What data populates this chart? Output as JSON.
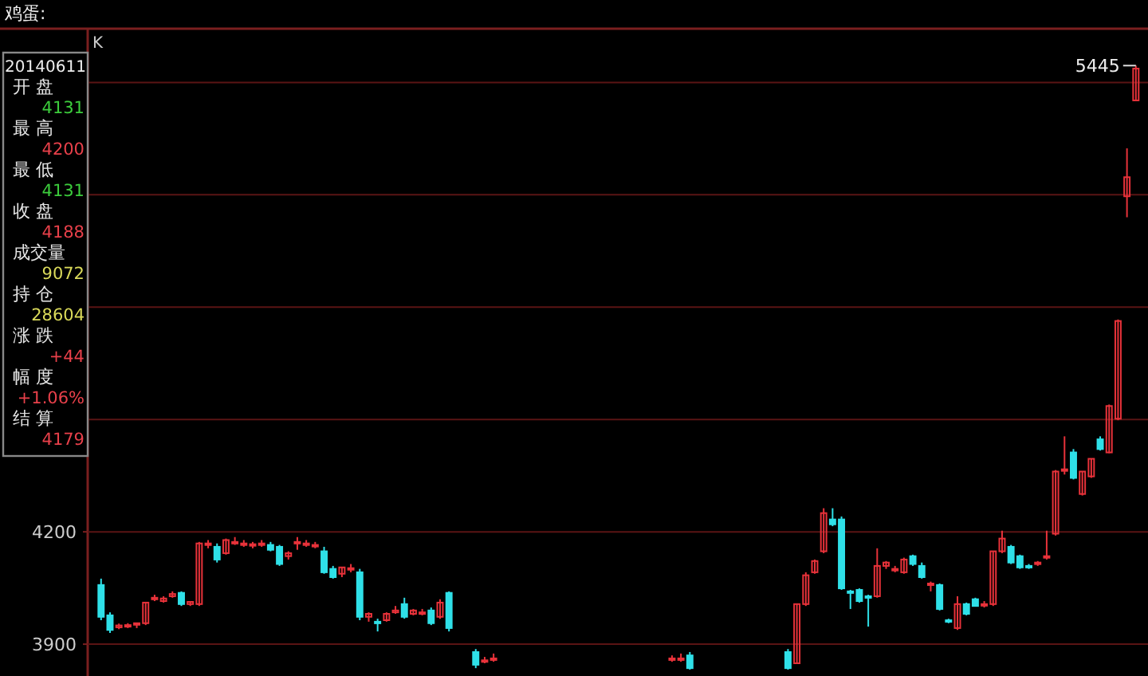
{
  "chart_data": {
    "type": "candlestick",
    "title": "鸡蛋:",
    "subtitle": "K",
    "categories": [
      null,
      null,
      null,
      null,
      null,
      null,
      null,
      null,
      null,
      null,
      null,
      null,
      null,
      null,
      null,
      null,
      null,
      null,
      null,
      null,
      null,
      null,
      null,
      null,
      null,
      null,
      null,
      null,
      null,
      null,
      null,
      null,
      null,
      null,
      null,
      null,
      null,
      null,
      null,
      null,
      null,
      null,
      null,
      null,
      null,
      null,
      null,
      null,
      null,
      null,
      null,
      null,
      null,
      null,
      null,
      null,
      null,
      null,
      null,
      null,
      null,
      null,
      null,
      null,
      null,
      null,
      null,
      null,
      null,
      null,
      null,
      null,
      null,
      null,
      null,
      null,
      null,
      null,
      null,
      null,
      null,
      null,
      null,
      null,
      null,
      null,
      null,
      null,
      null,
      null,
      null,
      null,
      null,
      null,
      null,
      null,
      null,
      null,
      null,
      null,
      null,
      null,
      null,
      null,
      null,
      null,
      null,
      null,
      null,
      null,
      null,
      null,
      null,
      null,
      null,
      null,
      null
    ],
    "ohlc": [
      [
        4058,
        4075,
        3964,
        3973
      ],
      [
        3977,
        3985,
        3930,
        3938
      ],
      [
        3945,
        3955,
        3940,
        3950
      ],
      [
        3947,
        3956,
        3943,
        3951
      ],
      [
        3956,
        3956,
        3943,
        3956
      ],
      [
        3956,
        4011,
        3951,
        4011
      ],
      [
        4024,
        4032,
        4015,
        4024
      ],
      [
        4015,
        4028,
        4011,
        4022
      ],
      [
        4028,
        4041,
        4024,
        4034
      ],
      [
        4037,
        4041,
        4002,
        4007
      ],
      [
        4007,
        4015,
        4002,
        4013
      ],
      [
        4007,
        4173,
        4002,
        4169
      ],
      [
        4169,
        4178,
        4156,
        4169
      ],
      [
        4160,
        4169,
        4118,
        4126
      ],
      [
        4143,
        4182,
        4139,
        4178
      ],
      [
        4173,
        4186,
        4165,
        4173
      ],
      [
        4169,
        4178,
        4160,
        4169
      ],
      [
        4163,
        4173,
        4156,
        4167
      ],
      [
        4169,
        4178,
        4160,
        4169
      ],
      [
        4165,
        4173,
        4148,
        4152
      ],
      [
        4160,
        4165,
        4109,
        4114
      ],
      [
        4135,
        4148,
        4126,
        4143
      ],
      [
        4173,
        4186,
        4152,
        4173
      ],
      [
        4169,
        4178,
        4160,
        4169
      ],
      [
        4165,
        4173,
        4156,
        4165
      ],
      [
        4148,
        4160,
        4088,
        4092
      ],
      [
        4101,
        4109,
        4075,
        4079
      ],
      [
        4088,
        4105,
        4079,
        4105
      ],
      [
        4101,
        4114,
        4092,
        4103
      ],
      [
        4092,
        4101,
        3964,
        3973
      ],
      [
        3973,
        3985,
        3960,
        3981
      ],
      [
        3960,
        3968,
        3934,
        3958
      ],
      [
        3964,
        3985,
        3960,
        3981
      ],
      [
        3985,
        4002,
        3981,
        3990
      ],
      [
        4007,
        4024,
        3968,
        3973
      ],
      [
        3981,
        3994,
        3977,
        3990
      ],
      [
        3985,
        3994,
        3977,
        3985
      ],
      [
        3990,
        3998,
        3951,
        3956
      ],
      [
        3973,
        4020,
        3968,
        4011
      ],
      [
        4037,
        4041,
        3934,
        3943
      ],
      null,
      null,
      [
        3879,
        3887,
        3836,
        3845
      ],
      [
        3857,
        3866,
        3849,
        3857
      ],
      [
        3862,
        3875,
        3853,
        3862
      ],
      null,
      null,
      null,
      null,
      null,
      null,
      null,
      null,
      null,
      null,
      null,
      null,
      null,
      null,
      null,
      null,
      null,
      null,
      null,
      [
        3862,
        3870,
        3853,
        3862
      ],
      [
        3862,
        3875,
        3853,
        3862
      ],
      [
        3870,
        3879,
        3832,
        3836
      ],
      null,
      null,
      null,
      null,
      null,
      null,
      null,
      null,
      null,
      null,
      [
        3879,
        3887,
        3832,
        3836
      ],
      [
        3849,
        4007,
        3849,
        4007
      ],
      [
        4007,
        4092,
        4002,
        4084
      ],
      [
        4092,
        4126,
        4088,
        4122
      ],
      [
        4148,
        4263,
        4143,
        4250
      ],
      [
        4233,
        4263,
        4215,
        4220
      ],
      [
        4233,
        4241,
        4045,
        4049
      ],
      [
        4041,
        4045,
        3994,
        4037
      ],
      [
        4045,
        4049,
        4011,
        4015
      ],
      [
        4028,
        4032,
        3947,
        4026
      ],
      [
        4028,
        4156,
        4024,
        4109
      ],
      [
        4109,
        4122,
        4101,
        4118
      ],
      [
        4101,
        4109,
        4092,
        4101
      ],
      [
        4092,
        4131,
        4088,
        4126
      ],
      [
        4135,
        4139,
        4109,
        4114
      ],
      [
        4109,
        4118,
        4075,
        4079
      ],
      [
        4058,
        4067,
        4041,
        4062
      ],
      [
        4058,
        4062,
        3990,
        3994
      ],
      [
        3964,
        3968,
        3956,
        3962
      ],
      [
        3943,
        4028,
        3938,
        4007
      ],
      [
        4007,
        4011,
        3977,
        3981
      ],
      [
        4020,
        4024,
        4002,
        4002
      ],
      [
        4007,
        4015,
        3998,
        4007
      ],
      [
        4007,
        4148,
        4002,
        4148
      ],
      [
        4148,
        4203,
        4143,
        4182
      ],
      [
        4160,
        4165,
        4114,
        4118
      ],
      [
        4135,
        4139,
        4101,
        4105
      ],
      [
        4109,
        4114,
        4101,
        4107
      ],
      [
        4114,
        4122,
        4109,
        4118
      ],
      [
        4131,
        4203,
        4126,
        4135
      ],
      [
        4195,
        4365,
        4190,
        4361
      ],
      [
        4365,
        4455,
        4353,
        4367
      ],
      [
        4412,
        4421,
        4340,
        4344
      ],
      [
        4301,
        4361,
        4297,
        4361
      ],
      [
        4348,
        4395,
        4344,
        4395
      ],
      [
        4447,
        4455,
        4417,
        4421
      ],
      [
        4412,
        4540,
        4410,
        4536
      ],
      [
        4502,
        4767,
        4498,
        4763
      ],
      [
        5096,
        5224,
        5040,
        5147
      ],
      [
        5352,
        5445,
        5350,
        5437
      ]
    ],
    "ylim": [
      3815,
      5535
    ],
    "yticks": [
      3900,
      4200,
      {
        "value": 4500,
        "label": null
      },
      {
        "value": 4800,
        "label": null
      },
      {
        "value": 5100,
        "label": null
      },
      {
        "value": 5400,
        "label": null
      }
    ],
    "grid": "y",
    "annotations": [
      "5445",
      "20140611",
      "开 盘",
      "4131",
      "最 高",
      "4200",
      "最 低",
      "4131",
      "收 盘",
      "4188",
      "成交量",
      "9072",
      "持 仓",
      "28604",
      "涨 跌",
      "+44",
      "幅 度",
      "+1.06%",
      "结 算",
      "4179"
    ]
  }
}
